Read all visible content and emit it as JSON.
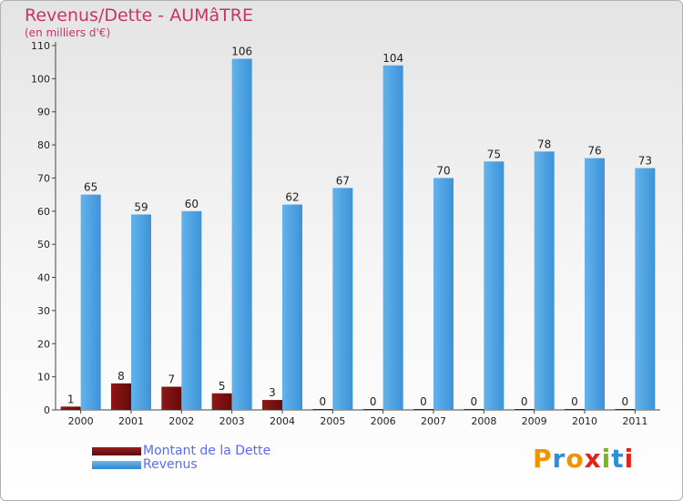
{
  "title": "Revenus/Dette - AUMâTRE",
  "subtitle": "(en milliers d'€)",
  "logo": [
    "P",
    "r",
    "o",
    "x",
    "i",
    "t",
    "i"
  ],
  "colors": {
    "logo": [
      "#f39200",
      "#2d8fd5",
      "#f39200",
      "#e2231a",
      "#7ab51d",
      "#2d8fd5",
      "#e2231a"
    ],
    "dette": "#7a1010",
    "revenus": "#4aa0e2",
    "axis_text": "#222222",
    "title": "#c8336a",
    "legend_text": "#5b6cf0"
  },
  "chart_data": {
    "type": "bar",
    "categories": [
      "2000",
      "2001",
      "2002",
      "2003",
      "2004",
      "2005",
      "2006",
      "2007",
      "2008",
      "2009",
      "2010",
      "2011"
    ],
    "series": [
      {
        "name": "Montant de la Dette",
        "values": [
          1,
          8,
          7,
          5,
          3,
          0,
          0,
          0,
          0,
          0,
          0,
          0
        ]
      },
      {
        "name": "Revenus",
        "values": [
          65,
          59,
          60,
          106,
          62,
          67,
          104,
          70,
          75,
          78,
          76,
          73
        ]
      }
    ],
    "yticks": [
      0,
      10,
      20,
      30,
      40,
      50,
      60,
      70,
      80,
      90,
      100,
      110
    ],
    "ylim": [
      0,
      110
    ],
    "legend_position": "bottom-left",
    "grid": false
  }
}
